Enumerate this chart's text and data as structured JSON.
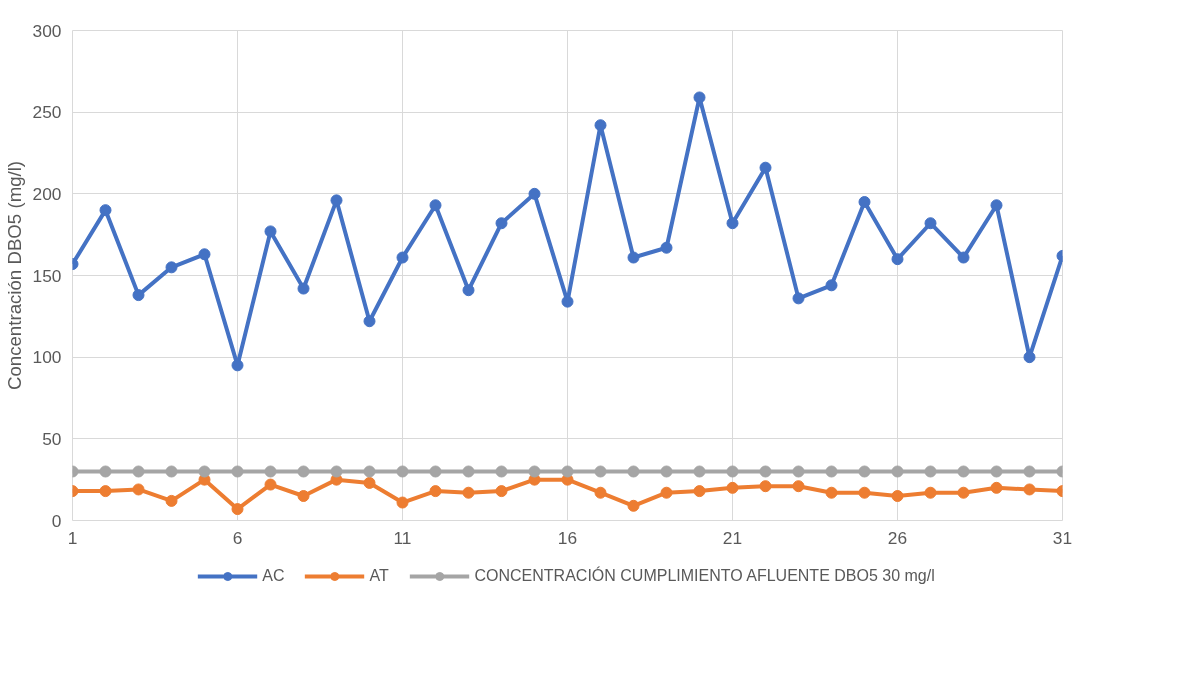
{
  "chart_data": {
    "type": "line",
    "ylabel": "Concentración DBO5 (mg/l)",
    "x": [
      1,
      2,
      3,
      4,
      5,
      6,
      7,
      8,
      9,
      10,
      11,
      12,
      13,
      14,
      15,
      16,
      17,
      18,
      19,
      20,
      21,
      22,
      23,
      24,
      25,
      26,
      27,
      28,
      29,
      30,
      31
    ],
    "series": [
      {
        "name": "AC",
        "color": "#4472c4",
        "values": [
          157,
          190,
          138,
          155,
          163,
          95,
          177,
          142,
          196,
          122,
          161,
          193,
          141,
          182,
          200,
          134,
          242,
          161,
          167,
          259,
          182,
          216,
          136,
          144,
          195,
          160,
          182,
          161,
          193,
          100,
          162
        ]
      },
      {
        "name": "AT",
        "color": "#ed7d31",
        "values": [
          18,
          18,
          19,
          12,
          25,
          7,
          22,
          15,
          25,
          23,
          11,
          18,
          17,
          18,
          25,
          25,
          17,
          9,
          17,
          18,
          20,
          21,
          21,
          17,
          17,
          15,
          17,
          17,
          20,
          19,
          18
        ]
      },
      {
        "name": "CONCENTRACIÓN CUMPLIMIENTO AFLUENTE DBO5 30 mg/l",
        "color": "#a5a5a5",
        "values": [
          30,
          30,
          30,
          30,
          30,
          30,
          30,
          30,
          30,
          30,
          30,
          30,
          30,
          30,
          30,
          30,
          30,
          30,
          30,
          30,
          30,
          30,
          30,
          30,
          30,
          30,
          30,
          30,
          30,
          30,
          30
        ]
      }
    ],
    "xlim": [
      1,
      31
    ],
    "xticks": [
      1,
      6,
      11,
      16,
      21,
      26,
      31
    ],
    "ylim": [
      0,
      300
    ],
    "yticks": [
      0,
      50,
      100,
      150,
      200,
      250,
      300
    ],
    "grid": true,
    "legend": "bottom",
    "marker": "circle",
    "line_style": "solid"
  }
}
